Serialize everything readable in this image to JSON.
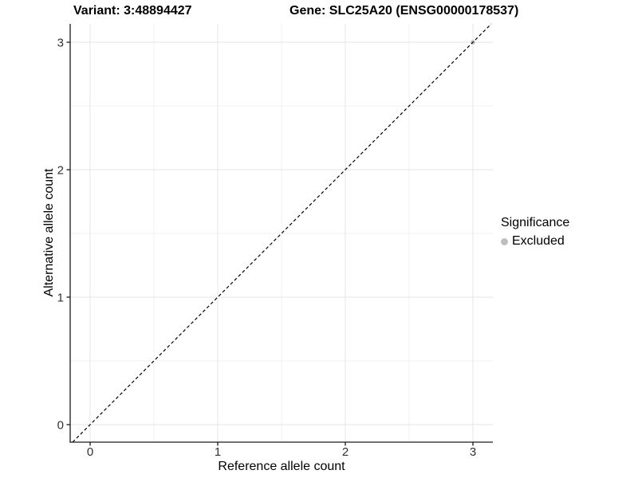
{
  "header": {
    "variant_title": "Variant: 3:48894427",
    "gene_title": "Gene: SLC25A20 (ENSG00000178537)"
  },
  "chart_data": {
    "type": "scatter",
    "title": "Variant: 3:48894427   Gene: SLC25A20 (ENSG00000178537)",
    "xlabel": "Reference allele count",
    "ylabel": "Alternative allele count",
    "xticks": [
      0,
      1,
      2,
      3
    ],
    "yticks": [
      0,
      1,
      2,
      3
    ],
    "xlim": [
      -0.15,
      3.15
    ],
    "ylim": [
      -0.15,
      3.15
    ],
    "grid": "major+minor",
    "points": [
      {
        "x": 3,
        "y": 3,
        "series": "Excluded"
      }
    ],
    "reference_line": {
      "type": "abline",
      "slope": 1,
      "intercept": 0,
      "style": "dashed",
      "color": "#000000"
    },
    "legend": {
      "title": "Significance",
      "position": "right",
      "entries": [
        {
          "label": "Excluded",
          "color": "#bebebe",
          "marker": "circle"
        }
      ]
    }
  },
  "colors": {
    "background": "#ffffff",
    "grid_major": "#e4e4e4",
    "grid_minor": "#f1f1f1",
    "axis_line": "#1a1a1a",
    "tick_text": "#303030",
    "title_text": "#000000",
    "point": "#bebebe"
  }
}
